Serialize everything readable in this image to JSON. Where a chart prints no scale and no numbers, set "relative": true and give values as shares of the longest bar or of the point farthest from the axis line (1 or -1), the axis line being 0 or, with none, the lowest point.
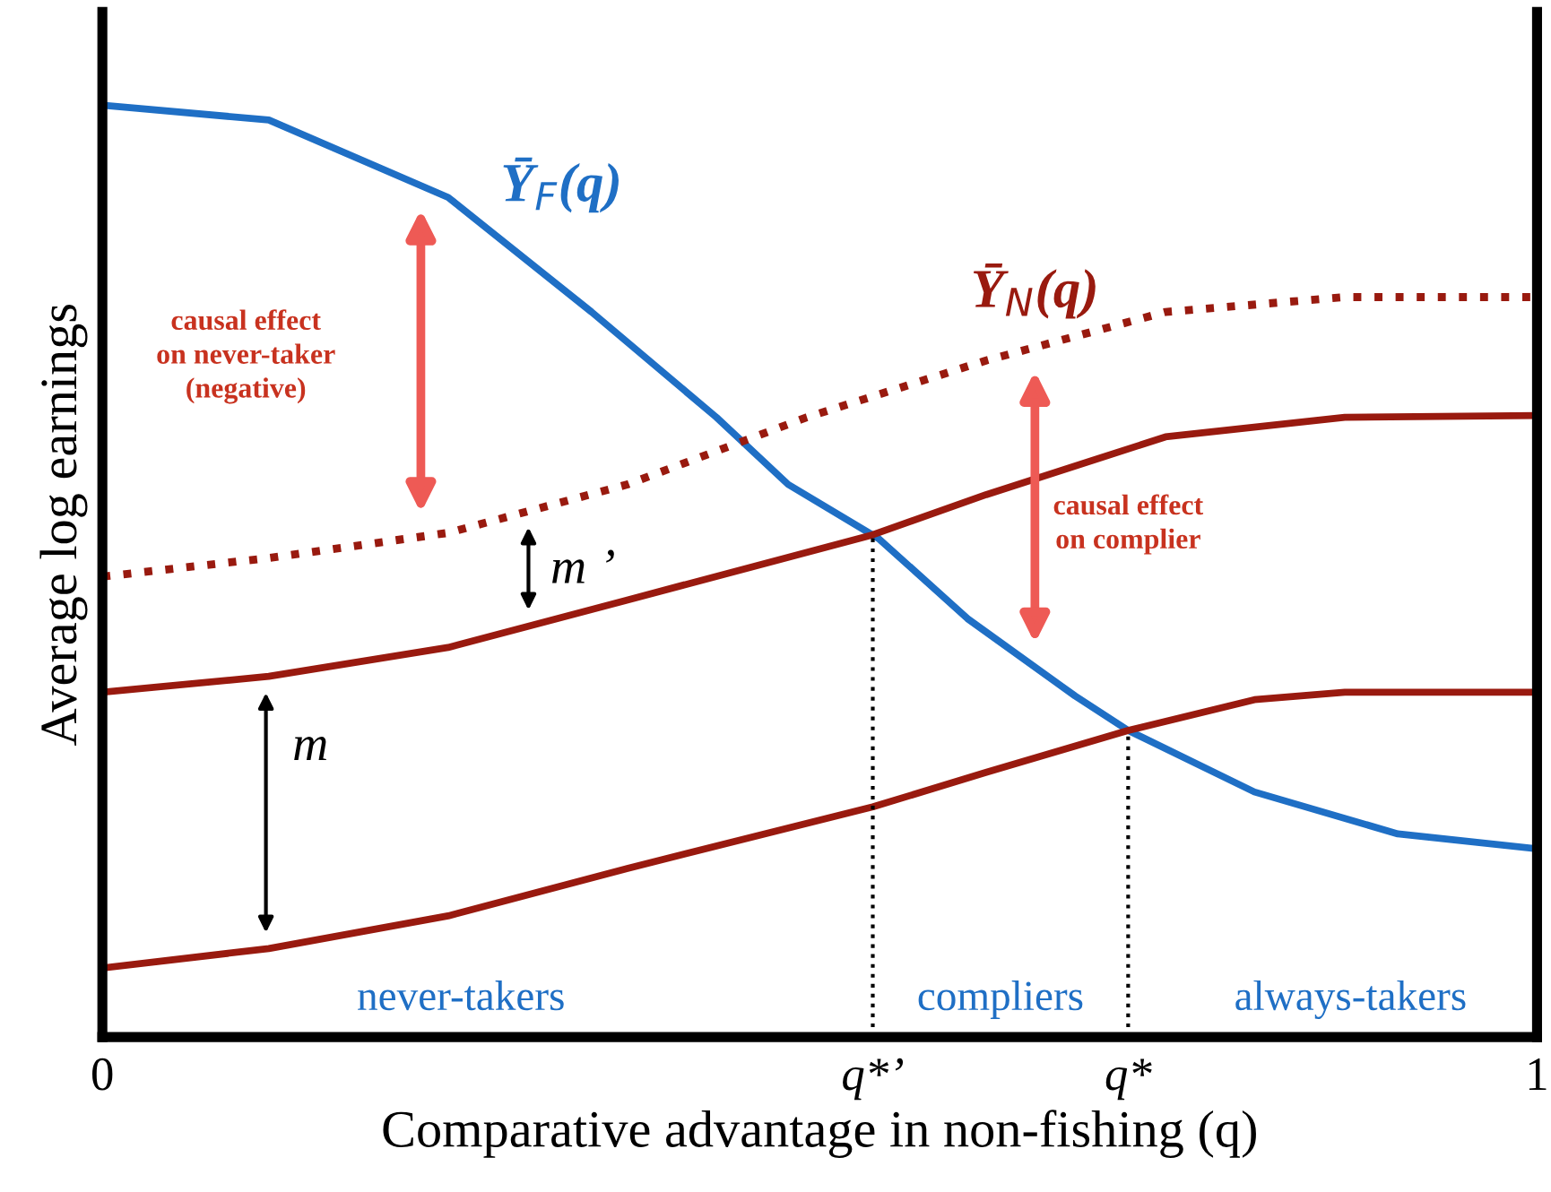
{
  "chart_data": {
    "type": "line",
    "relative": true,
    "xlabel": "Comparative advantage in non-fishing (q)",
    "ylabel": "Average log earnings",
    "xlim": [
      0,
      1
    ],
    "xticks": [
      0,
      {
        "value": 0.537,
        "label": "q*’"
      },
      {
        "value": 0.715,
        "label": "q*"
      },
      1
    ],
    "series": [
      {
        "name": "Ȳ$_{F}$(q)",
        "color": "#1f6fc5",
        "line_style": "solid",
        "x": [
          0,
          0.116,
          0.241,
          0.341,
          0.428,
          0.478,
          0.541,
          0.603,
          0.678,
          0.715,
          0.803,
          0.903,
          1.0
        ],
        "values": [
          1.0,
          0.984,
          0.901,
          0.778,
          0.665,
          0.593,
          0.535,
          0.449,
          0.366,
          0.329,
          0.263,
          0.218,
          0.202
        ]
      },
      {
        "name": "Ȳ$_{N}$(q)",
        "color": "#991a0f",
        "line_style": "dotted",
        "x": [
          0,
          0.116,
          0.241,
          0.366,
          0.491,
          0.616,
          0.741,
          0.866,
          1.0
        ],
        "values": [
          0.494,
          0.514,
          0.541,
          0.593,
          0.665,
          0.726,
          0.778,
          0.794,
          0.794
        ]
      },
      {
        "color": "#991a0f",
        "line_style": "solid",
        "x": [
          0,
          0.116,
          0.241,
          0.366,
          0.537,
          0.616,
          0.741,
          0.866,
          1.0
        ],
        "values": [
          0.37,
          0.387,
          0.418,
          0.469,
          0.539,
          0.582,
          0.644,
          0.665,
          0.667
        ]
      },
      {
        "color": "#991a0f",
        "line_style": "solid",
        "x": [
          0,
          0.116,
          0.241,
          0.366,
          0.537,
          0.616,
          0.715,
          0.803,
          0.866,
          1.0
        ],
        "values": [
          0.074,
          0.095,
          0.13,
          0.181,
          0.247,
          0.284,
          0.329,
          0.362,
          0.37,
          0.37
        ]
      }
    ],
    "ref_lines": [
      {
        "axis": "x",
        "value": 0.537,
        "line_style": "dotted",
        "color": "#000000"
      },
      {
        "axis": "x",
        "value": 0.715,
        "line_style": "dotted",
        "color": "#000000"
      }
    ],
    "annotations": [
      "causal effect\non never-taker\n(negative)",
      "causal effect\non complier",
      "m ’",
      "m",
      "never-takers",
      "compliers",
      "always-takers"
    ],
    "grid": false,
    "marker": "none"
  }
}
